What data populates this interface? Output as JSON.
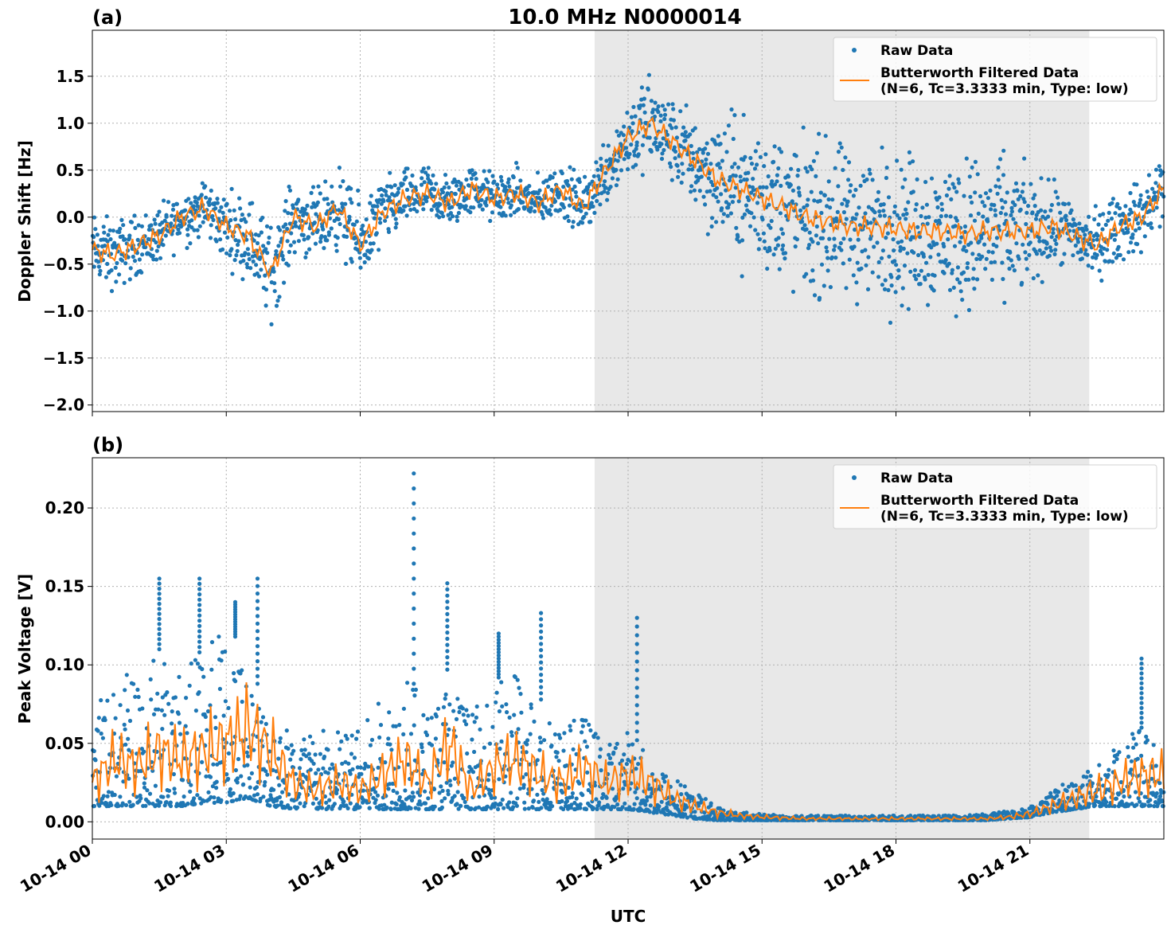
{
  "figure": {
    "title": "10.0 MHz N0000014",
    "xlabel": "UTC",
    "x_tick_labels": [
      "10-14 00",
      "10-14 03",
      "10-14 06",
      "10-14 09",
      "10-14 12",
      "10-14 15",
      "10-14 18",
      "10-14 21"
    ],
    "colors": {
      "raw": "#1f77b4",
      "filtered": "#ff7f0e",
      "shade": "#e8e8e8",
      "grid": "#b0b0b0"
    }
  },
  "chart_data": [
    {
      "type": "scatter",
      "panel_label": "(a)",
      "ylabel": "Doppler Shift [Hz]",
      "xlim_hours_utc": [
        0,
        24
      ],
      "ylim": [
        -2.07,
        1.99
      ],
      "y_ticks": [
        -2.0,
        -1.5,
        -1.0,
        -0.5,
        0.0,
        0.5,
        1.0,
        1.5
      ],
      "y_tick_labels": [
        "−2.0",
        "−1.5",
        "−1.0",
        "−0.5",
        "0.0",
        "0.5",
        "1.0",
        "1.5"
      ],
      "shaded_interval_hours_utc": [
        11.25,
        22.33
      ],
      "grid": true,
      "legend_position": "top-right",
      "legend": [
        "Raw Data",
        "Butterworth Filtered Data",
        "(N=6, Tc=3.3333 min, Type: low)"
      ],
      "series": [
        {
          "name": "Butterworth Filtered Data",
          "style": "line",
          "x_hours_utc": [
            0.0,
            0.5,
            1.0,
            1.5,
            2.0,
            2.5,
            3.0,
            3.5,
            4.0,
            4.5,
            5.0,
            5.5,
            6.0,
            6.5,
            7.0,
            7.5,
            8.0,
            8.5,
            9.0,
            9.5,
            10.0,
            10.5,
            11.0,
            11.5,
            12.0,
            12.5,
            13.0,
            13.5,
            14.0,
            14.5,
            15.0,
            15.5,
            16.0,
            16.5,
            17.0,
            17.5,
            18.0,
            18.5,
            19.0,
            19.5,
            20.0,
            20.5,
            21.0,
            21.5,
            22.0,
            22.5,
            23.0,
            23.5,
            24.0
          ],
          "values": [
            -0.35,
            -0.4,
            -0.3,
            -0.2,
            0.0,
            0.1,
            -0.1,
            -0.2,
            -0.6,
            0.0,
            -0.1,
            0.1,
            -0.3,
            0.05,
            0.2,
            0.25,
            0.15,
            0.3,
            0.2,
            0.25,
            0.15,
            0.3,
            0.1,
            0.5,
            0.85,
            1.0,
            0.8,
            0.6,
            0.4,
            0.3,
            0.2,
            0.1,
            0.0,
            -0.05,
            -0.1,
            -0.1,
            -0.12,
            -0.15,
            -0.15,
            -0.18,
            -0.15,
            -0.15,
            -0.15,
            -0.1,
            -0.2,
            -0.3,
            -0.1,
            0.0,
            0.3
          ]
        },
        {
          "name": "Raw Data",
          "style": "points",
          "band_half_width_hz": [
            0.25,
            0.25,
            0.22,
            0.2,
            0.2,
            0.2,
            0.25,
            0.3,
            0.35,
            0.25,
            0.25,
            0.3,
            0.3,
            0.25,
            0.2,
            0.2,
            0.2,
            0.18,
            0.18,
            0.18,
            0.18,
            0.2,
            0.2,
            0.25,
            0.3,
            0.35,
            0.3,
            0.35,
            0.45,
            0.5,
            0.55,
            0.55,
            0.55,
            0.55,
            0.55,
            0.55,
            0.55,
            0.55,
            0.55,
            0.55,
            0.55,
            0.5,
            0.4,
            0.3,
            0.25,
            0.25,
            0.25,
            0.25,
            0.3
          ]
        }
      ]
    },
    {
      "type": "scatter",
      "panel_label": "(b)",
      "ylabel": "Peak Voltage [V]",
      "xlim_hours_utc": [
        0,
        24
      ],
      "ylim": [
        -0.011,
        0.232
      ],
      "y_ticks": [
        0.0,
        0.05,
        0.1,
        0.15,
        0.2
      ],
      "y_tick_labels": [
        "0.00",
        "0.05",
        "0.10",
        "0.15",
        "0.20"
      ],
      "shaded_interval_hours_utc": [
        11.25,
        22.33
      ],
      "grid": true,
      "legend_position": "top-right",
      "legend": [
        "Raw Data",
        "Butterworth Filtered Data",
        "(N=6, Tc=3.3333 min, Type: low)"
      ],
      "series": [
        {
          "name": "Butterworth Filtered Data",
          "style": "line",
          "x_hours_utc": [
            0.0,
            0.5,
            1.0,
            1.5,
            2.0,
            2.5,
            3.0,
            3.5,
            4.0,
            4.5,
            5.0,
            5.5,
            6.0,
            6.5,
            7.0,
            7.5,
            8.0,
            8.5,
            9.0,
            9.5,
            10.0,
            10.5,
            11.0,
            11.5,
            12.0,
            12.5,
            13.0,
            13.5,
            14.0,
            14.5,
            15.0,
            15.5,
            16.0,
            16.5,
            17.0,
            17.5,
            18.0,
            18.5,
            19.0,
            19.5,
            20.0,
            20.5,
            21.0,
            21.5,
            22.0,
            22.5,
            23.0,
            23.5,
            24.0
          ],
          "values": [
            0.025,
            0.04,
            0.035,
            0.045,
            0.04,
            0.045,
            0.05,
            0.06,
            0.045,
            0.025,
            0.02,
            0.025,
            0.02,
            0.03,
            0.04,
            0.025,
            0.05,
            0.02,
            0.035,
            0.04,
            0.03,
            0.025,
            0.035,
            0.025,
            0.03,
            0.025,
            0.015,
            0.01,
            0.006,
            0.004,
            0.003,
            0.0025,
            0.002,
            0.002,
            0.002,
            0.002,
            0.002,
            0.002,
            0.002,
            0.002,
            0.002,
            0.003,
            0.005,
            0.01,
            0.015,
            0.02,
            0.025,
            0.03,
            0.03
          ]
        },
        {
          "name": "Raw Data",
          "style": "points",
          "upper_envelope_v": [
            0.07,
            0.09,
            0.1,
            0.11,
            0.1,
            0.11,
            0.13,
            0.1,
            0.07,
            0.06,
            0.06,
            0.06,
            0.06,
            0.08,
            0.1,
            0.07,
            0.1,
            0.07,
            0.09,
            0.1,
            0.08,
            0.06,
            0.07,
            0.05,
            0.06,
            0.04,
            0.03,
            0.02,
            0.01,
            0.007,
            0.005,
            0.004,
            0.004,
            0.004,
            0.004,
            0.004,
            0.004,
            0.004,
            0.004,
            0.004,
            0.005,
            0.007,
            0.01,
            0.02,
            0.03,
            0.035,
            0.05,
            0.06,
            0.06
          ],
          "lower_envelope_v": [
            0.01,
            0.01,
            0.01,
            0.01,
            0.01,
            0.012,
            0.012,
            0.015,
            0.01,
            0.008,
            0.008,
            0.008,
            0.008,
            0.008,
            0.008,
            0.008,
            0.008,
            0.008,
            0.008,
            0.008,
            0.008,
            0.008,
            0.008,
            0.008,
            0.008,
            0.006,
            0.004,
            0.002,
            0.001,
            0.001,
            0.001,
            0.001,
            0.001,
            0.001,
            0.001,
            0.001,
            0.001,
            0.001,
            0.001,
            0.001,
            0.001,
            0.002,
            0.003,
            0.006,
            0.008,
            0.01,
            0.01,
            0.01,
            0.01
          ],
          "spikes": [
            {
              "x_hours_utc": 1.5,
              "value": 0.155
            },
            {
              "x_hours_utc": 2.4,
              "value": 0.155
            },
            {
              "x_hours_utc": 3.2,
              "value": 0.14
            },
            {
              "x_hours_utc": 3.7,
              "value": 0.155
            },
            {
              "x_hours_utc": 7.2,
              "value": 0.222
            },
            {
              "x_hours_utc": 7.95,
              "value": 0.152
            },
            {
              "x_hours_utc": 9.1,
              "value": 0.12
            },
            {
              "x_hours_utc": 10.05,
              "value": 0.133
            },
            {
              "x_hours_utc": 12.2,
              "value": 0.13
            },
            {
              "x_hours_utc": 23.5,
              "value": 0.104
            }
          ]
        }
      ]
    }
  ]
}
